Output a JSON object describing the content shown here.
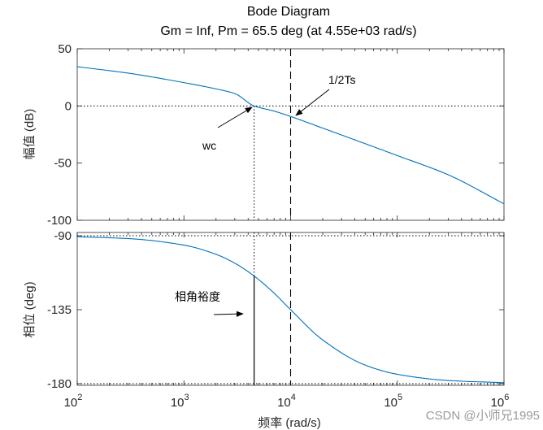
{
  "chart_data": {
    "type": "line",
    "title": "Bode Diagram",
    "subtitle": "Gm = Inf,  Pm = 65.5 deg (at 4.55e+03 rad/s)",
    "xlabel": "频率  (rad/s)",
    "xscale": "log",
    "xlim": [
      100,
      1000000
    ],
    "xticks": [
      {
        "base": "10",
        "exp": "2",
        "value": 100
      },
      {
        "base": "10",
        "exp": "3",
        "value": 1000
      },
      {
        "base": "10",
        "exp": "4",
        "value": 10000
      },
      {
        "base": "10",
        "exp": "5",
        "value": 100000
      },
      {
        "base": "10",
        "exp": "6",
        "value": 1000000
      }
    ],
    "grid": false,
    "color": "#0072BD",
    "panels": [
      {
        "name": "magnitude",
        "ylabel": "幅值 (dB)",
        "ylim": [
          -100,
          50
        ],
        "yticks": [
          50,
          0,
          -50,
          -100
        ],
        "yticklabels": [
          "50",
          "0",
          "-50",
          "-100"
        ],
        "x": [
          100,
          300,
          1000,
          2000,
          3000,
          4550,
          7000,
          10000,
          20000,
          50000,
          100000,
          300000,
          1000000
        ],
        "y": [
          34.3,
          28.7,
          20.4,
          14.9,
          10.8,
          0,
          -4.5,
          -9.2,
          -19.4,
          -33.0,
          -43.4,
          -60.2,
          -85.6
        ]
      },
      {
        "name": "phase",
        "ylabel": "相位 (deg)",
        "ylim": [
          -181,
          -88
        ],
        "yticks": [
          -90,
          -135,
          -180
        ],
        "yticklabels": [
          "-90",
          "-135",
          "-180"
        ],
        "x": [
          100,
          300,
          1000,
          2000,
          3000,
          4550,
          7000,
          10000,
          20000,
          50000,
          100000,
          300000,
          1000000
        ],
        "y": [
          -90.6,
          -91.7,
          -95.7,
          -101.3,
          -106.7,
          -114.5,
          -124.9,
          -135.0,
          -153.4,
          -168.7,
          -174.3,
          -178.1,
          -179.4
        ]
      }
    ],
    "annotations": [
      {
        "label": "wc",
        "x": 4550,
        "panel": "magnitude"
      },
      {
        "label": "1/2Ts",
        "x": 10000,
        "panel": "magnitude"
      },
      {
        "label": "相角裕度",
        "x": 4550,
        "panel": "phase"
      }
    ]
  },
  "watermark": "CSDN @小师兄1995"
}
